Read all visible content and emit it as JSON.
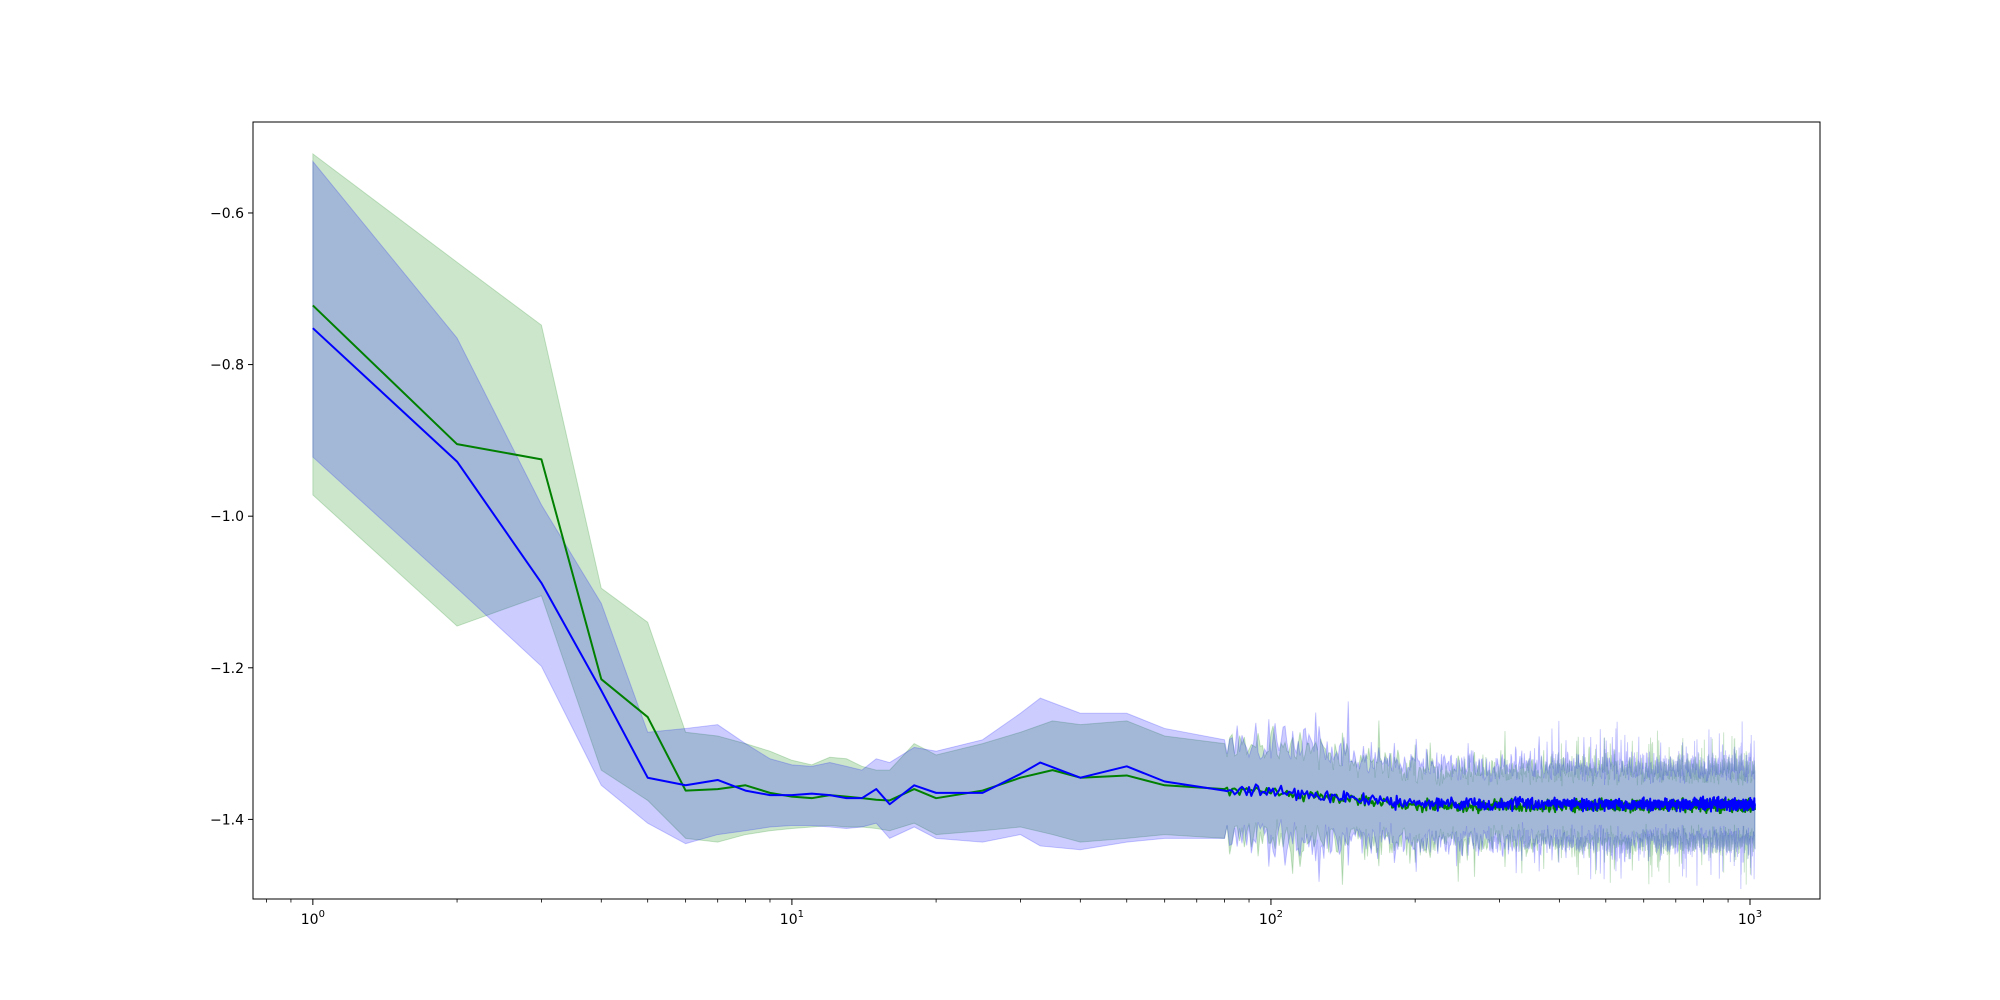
{
  "chart_data": {
    "type": "line",
    "title": "",
    "xlabel": "",
    "ylabel": "",
    "xscale": "log",
    "xlim": [
      0.75,
      1400
    ],
    "ylim": [
      -1.505,
      -0.48
    ],
    "grid": false,
    "legend": "none",
    "x_ticks": [
      {
        "value": 1,
        "base": "10",
        "exp": "0"
      },
      {
        "value": 10,
        "base": "10",
        "exp": "1"
      },
      {
        "value": 100,
        "base": "10",
        "exp": "2"
      },
      {
        "value": 1000,
        "base": "10",
        "exp": "3"
      }
    ],
    "y_ticks": [
      {
        "value": -0.6,
        "label": "−0.6"
      },
      {
        "value": -0.8,
        "label": "−0.8"
      },
      {
        "value": -1.0,
        "label": "−1.0"
      },
      {
        "value": -1.2,
        "label": "−1.2"
      },
      {
        "value": -1.4,
        "label": "−1.4"
      }
    ],
    "x_range": [
      1,
      1024
    ],
    "band_opacity": 0.2,
    "series": [
      {
        "color": "#008000",
        "head": [
          {
            "x": 1,
            "y": -0.722,
            "lo": -0.972,
            "hi": -0.522
          },
          {
            "x": 2,
            "y": -0.905,
            "lo": -1.145,
            "hi": -0.665
          },
          {
            "x": 3,
            "y": -0.925,
            "lo": -1.105,
            "hi": -0.748
          },
          {
            "x": 4,
            "y": -1.215,
            "lo": -1.335,
            "hi": -1.095
          },
          {
            "x": 5,
            "y": -1.265,
            "lo": -1.375,
            "hi": -1.14
          },
          {
            "x": 6,
            "y": -1.362,
            "lo": -1.425,
            "hi": -1.285
          },
          {
            "x": 7,
            "y": -1.36,
            "lo": -1.43,
            "hi": -1.29
          },
          {
            "x": 8,
            "y": -1.355,
            "lo": -1.42,
            "hi": -1.3
          },
          {
            "x": 9,
            "y": -1.365,
            "lo": -1.415,
            "hi": -1.31
          },
          {
            "x": 10,
            "y": -1.37,
            "lo": -1.412,
            "hi": -1.322
          },
          {
            "x": 11,
            "y": -1.372,
            "lo": -1.41,
            "hi": -1.328
          },
          {
            "x": 12,
            "y": -1.368,
            "lo": -1.408,
            "hi": -1.318
          },
          {
            "x": 13,
            "y": -1.37,
            "lo": -1.41,
            "hi": -1.32
          },
          {
            "x": 14,
            "y": -1.372,
            "lo": -1.41,
            "hi": -1.33
          },
          {
            "x": 15,
            "y": -1.374,
            "lo": -1.412,
            "hi": -1.335
          },
          {
            "x": 16,
            "y": -1.375,
            "lo": -1.415,
            "hi": -1.335
          },
          {
            "x": 18,
            "y": -1.36,
            "lo": -1.405,
            "hi": -1.3
          },
          {
            "x": 20,
            "y": -1.372,
            "lo": -1.42,
            "hi": -1.315
          },
          {
            "x": 25,
            "y": -1.362,
            "lo": -1.415,
            "hi": -1.3
          },
          {
            "x": 30,
            "y": -1.345,
            "lo": -1.41,
            "hi": -1.285
          },
          {
            "x": 35,
            "y": -1.335,
            "lo": -1.42,
            "hi": -1.27
          },
          {
            "x": 40,
            "y": -1.345,
            "lo": -1.43,
            "hi": -1.275
          },
          {
            "x": 50,
            "y": -1.342,
            "lo": -1.425,
            "hi": -1.27
          },
          {
            "x": 60,
            "y": -1.355,
            "lo": -1.42,
            "hi": -1.29
          },
          {
            "x": 80,
            "y": -1.36,
            "lo": -1.425,
            "hi": -1.3
          }
        ],
        "tail_mean": -1.382,
        "tail_halfwidth": 0.048,
        "tail_noise": 0.012,
        "seed": 7
      },
      {
        "color": "#0000ff",
        "head": [
          {
            "x": 1,
            "y": -0.752,
            "lo": -0.922,
            "hi": -0.532
          },
          {
            "x": 2,
            "y": -0.928,
            "lo": -1.095,
            "hi": -0.765
          },
          {
            "x": 3,
            "y": -1.088,
            "lo": -1.198,
            "hi": -0.985
          },
          {
            "x": 4,
            "y": -1.23,
            "lo": -1.355,
            "hi": -1.115
          },
          {
            "x": 5,
            "y": -1.345,
            "lo": -1.405,
            "hi": -1.285
          },
          {
            "x": 6,
            "y": -1.355,
            "lo": -1.432,
            "hi": -1.28
          },
          {
            "x": 7,
            "y": -1.348,
            "lo": -1.42,
            "hi": -1.275
          },
          {
            "x": 8,
            "y": -1.362,
            "lo": -1.415,
            "hi": -1.3
          },
          {
            "x": 9,
            "y": -1.368,
            "lo": -1.41,
            "hi": -1.32
          },
          {
            "x": 10,
            "y": -1.368,
            "lo": -1.408,
            "hi": -1.328
          },
          {
            "x": 11,
            "y": -1.366,
            "lo": -1.408,
            "hi": -1.33
          },
          {
            "x": 12,
            "y": -1.368,
            "lo": -1.41,
            "hi": -1.325
          },
          {
            "x": 13,
            "y": -1.372,
            "lo": -1.412,
            "hi": -1.33
          },
          {
            "x": 14,
            "y": -1.372,
            "lo": -1.41,
            "hi": -1.335
          },
          {
            "x": 15,
            "y": -1.36,
            "lo": -1.405,
            "hi": -1.32
          },
          {
            "x": 16,
            "y": -1.38,
            "lo": -1.425,
            "hi": -1.325
          },
          {
            "x": 18,
            "y": -1.355,
            "lo": -1.41,
            "hi": -1.305
          },
          {
            "x": 20,
            "y": -1.365,
            "lo": -1.425,
            "hi": -1.31
          },
          {
            "x": 25,
            "y": -1.365,
            "lo": -1.43,
            "hi": -1.295
          },
          {
            "x": 30,
            "y": -1.34,
            "lo": -1.42,
            "hi": -1.26
          },
          {
            "x": 33,
            "y": -1.325,
            "lo": -1.435,
            "hi": -1.24
          },
          {
            "x": 40,
            "y": -1.345,
            "lo": -1.44,
            "hi": -1.26
          },
          {
            "x": 50,
            "y": -1.33,
            "lo": -1.43,
            "hi": -1.26
          },
          {
            "x": 60,
            "y": -1.35,
            "lo": -1.425,
            "hi": -1.28
          },
          {
            "x": 80,
            "y": -1.362,
            "lo": -1.425,
            "hi": -1.295
          }
        ],
        "tail_mean": -1.38,
        "tail_halfwidth": 0.05,
        "tail_noise": 0.012,
        "seed": 13
      }
    ]
  }
}
